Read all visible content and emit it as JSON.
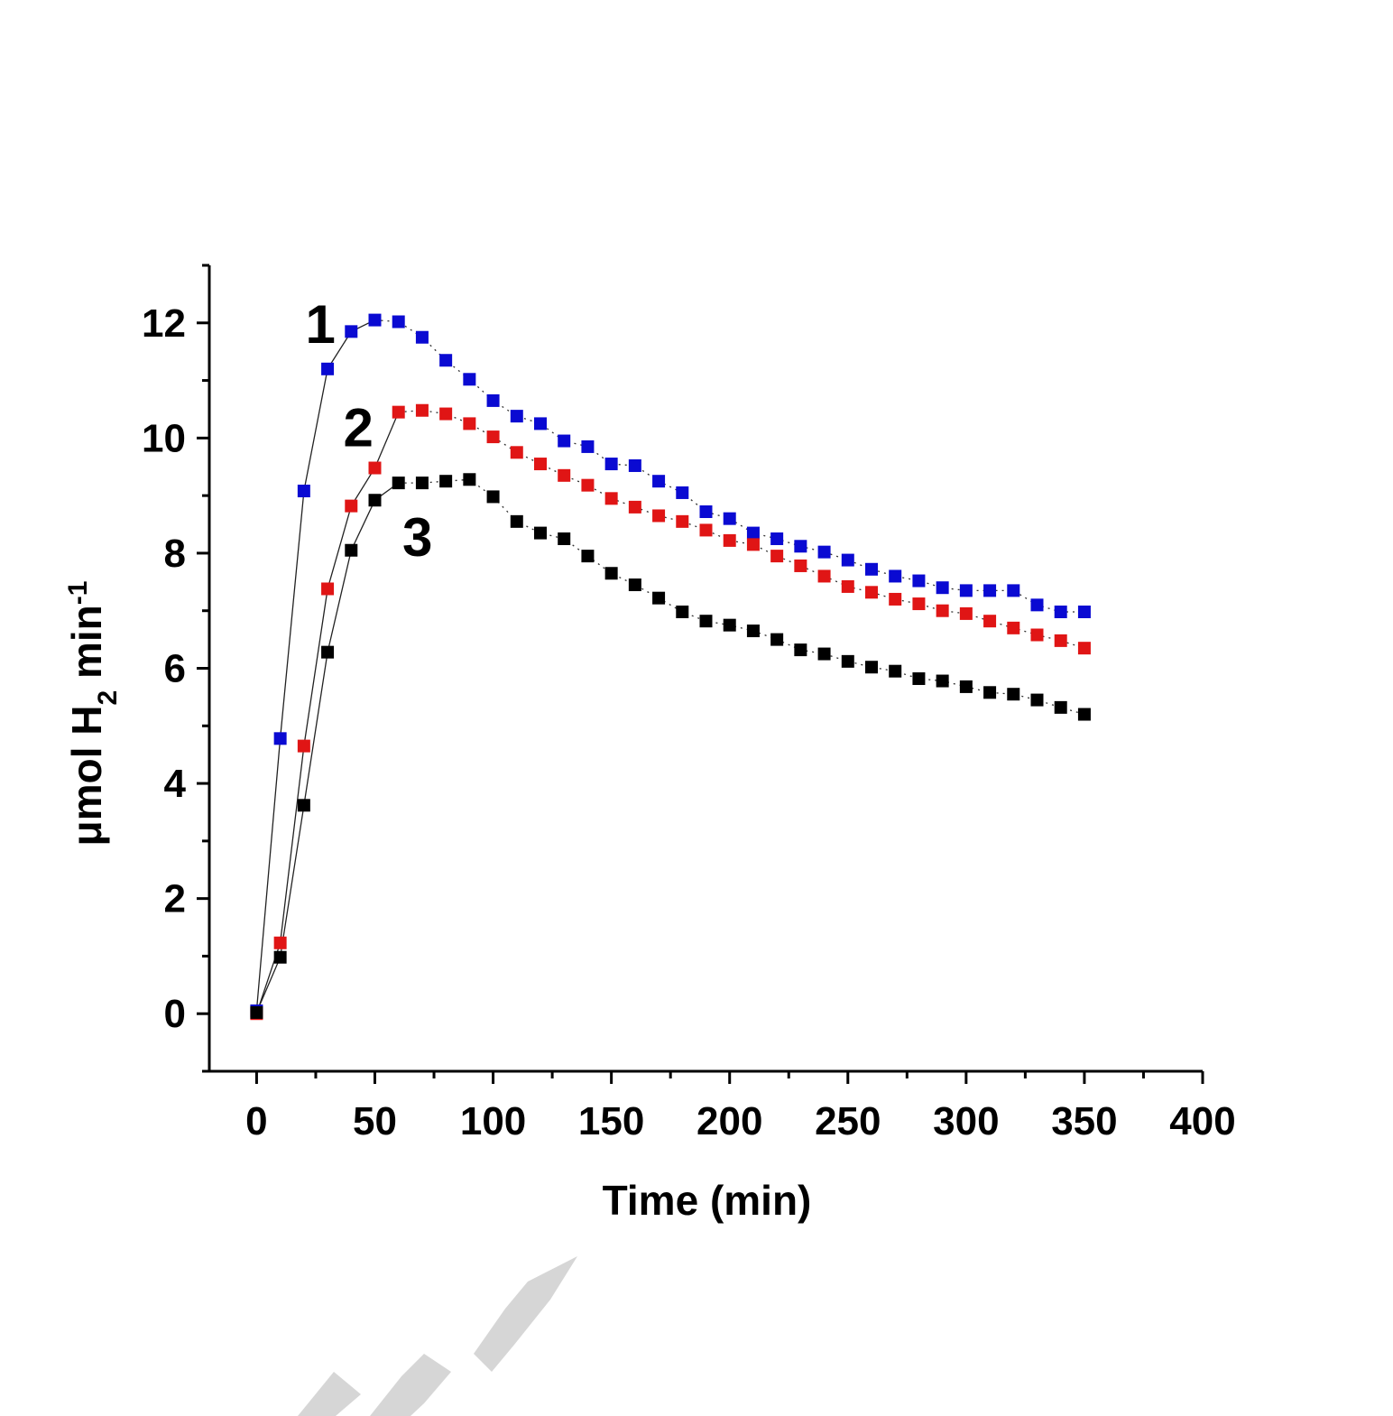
{
  "chart_data": {
    "type": "scatter",
    "title": "",
    "xlabel": "Time (min)",
    "ylabel_parts": {
      "base": "μmol H",
      "sub": "2",
      "mid": " min",
      "sup": "-1"
    },
    "xlim": [
      -20,
      400
    ],
    "ylim": [
      -1,
      13
    ],
    "x_ticks": [
      0,
      50,
      100,
      150,
      200,
      250,
      300,
      350,
      400
    ],
    "x_tick_labels": [
      "0",
      "50",
      "100",
      "150",
      "200",
      "250",
      "300",
      "350",
      "400"
    ],
    "y_ticks": [
      0,
      2,
      4,
      6,
      8,
      10,
      12
    ],
    "y_tick_labels": [
      "0",
      "2",
      "4",
      "6",
      "8",
      "10",
      "12"
    ],
    "grid": false,
    "x": [
      0,
      10,
      20,
      30,
      40,
      50,
      60,
      70,
      80,
      90,
      100,
      110,
      120,
      130,
      140,
      150,
      160,
      170,
      180,
      190,
      200,
      210,
      220,
      230,
      240,
      250,
      260,
      270,
      280,
      290,
      300,
      310,
      320,
      330,
      340,
      350
    ],
    "series": [
      {
        "label": "1",
        "color": "#0a0ad2",
        "connected_until_x": 50,
        "values": [
          0.05,
          4.78,
          9.08,
          11.2,
          11.85,
          12.05,
          12.02,
          11.75,
          11.35,
          11.02,
          10.65,
          10.38,
          10.25,
          9.95,
          9.85,
          9.55,
          9.52,
          9.25,
          9.05,
          8.72,
          8.6,
          8.35,
          8.25,
          8.12,
          8.02,
          7.88,
          7.72,
          7.6,
          7.52,
          7.4,
          7.35,
          7.35,
          7.35,
          7.1,
          6.98,
          6.98
        ]
      },
      {
        "label": "2",
        "color": "#e01515",
        "connected_until_x": 60,
        "values": [
          0.0,
          1.23,
          4.65,
          7.38,
          8.82,
          9.48,
          10.45,
          10.48,
          10.42,
          10.25,
          10.02,
          9.75,
          9.55,
          9.35,
          9.18,
          8.95,
          8.8,
          8.65,
          8.55,
          8.4,
          8.22,
          8.15,
          7.95,
          7.78,
          7.6,
          7.42,
          7.32,
          7.2,
          7.12,
          7.0,
          6.95,
          6.82,
          6.7,
          6.58,
          6.48,
          6.35
        ]
      },
      {
        "label": "3",
        "color": "#000000",
        "connected_until_x": 60,
        "values": [
          0.02,
          0.98,
          3.62,
          6.28,
          8.05,
          8.92,
          9.22,
          9.22,
          9.25,
          9.28,
          8.98,
          8.55,
          8.35,
          8.25,
          7.95,
          7.65,
          7.45,
          7.22,
          6.98,
          6.82,
          6.75,
          6.65,
          6.5,
          6.32,
          6.25,
          6.12,
          6.02,
          5.95,
          5.82,
          5.78,
          5.68,
          5.58,
          5.55,
          5.45,
          5.32,
          5.2
        ]
      }
    ],
    "curve_labels": [
      {
        "text": "1",
        "x": 27,
        "y": 12.0
      },
      {
        "text": "2",
        "x": 43,
        "y": 10.2
      },
      {
        "text": "3",
        "x": 68,
        "y": 8.3
      }
    ]
  }
}
